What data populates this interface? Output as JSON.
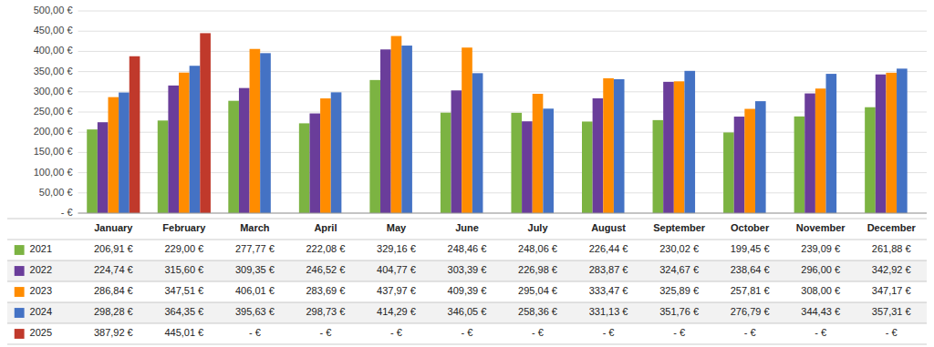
{
  "chart_data": {
    "type": "bar",
    "categories": [
      "January",
      "February",
      "March",
      "April",
      "May",
      "June",
      "July",
      "August",
      "September",
      "October",
      "November",
      "December"
    ],
    "series": [
      {
        "name": "2021",
        "color": "#7CB342",
        "values": [
          206.91,
          229.0,
          277.77,
          222.08,
          329.16,
          248.46,
          248.06,
          226.44,
          230.02,
          199.45,
          239.09,
          261.88
        ],
        "value_labels": [
          "206,91 €",
          "229,00 €",
          "277,77 €",
          "222,08 €",
          "329,16 €",
          "248,46 €",
          "248,06 €",
          "226,44 €",
          "230,02 €",
          "199,45 €",
          "239,09 €",
          "261,88 €"
        ]
      },
      {
        "name": "2022",
        "color": "#6A3D9A",
        "values": [
          224.74,
          315.6,
          309.35,
          246.52,
          404.77,
          303.39,
          226.98,
          283.87,
          324.67,
          238.64,
          296.0,
          342.92
        ],
        "value_labels": [
          "224,74 €",
          "315,60 €",
          "309,35 €",
          "246,52 €",
          "404,77 €",
          "303,39 €",
          "226,98 €",
          "283,87 €",
          "324,67 €",
          "238,64 €",
          "296,00 €",
          "342,92 €"
        ]
      },
      {
        "name": "2023",
        "color": "#FF8C00",
        "values": [
          286.84,
          347.51,
          406.01,
          283.69,
          437.97,
          409.39,
          295.04,
          333.47,
          325.89,
          257.81,
          308.0,
          347.17
        ],
        "value_labels": [
          "286,84 €",
          "347,51 €",
          "406,01 €",
          "283,69 €",
          "437,97 €",
          "409,39 €",
          "295,04 €",
          "333,47 €",
          "325,89 €",
          "257,81 €",
          "308,00 €",
          "347,17 €"
        ]
      },
      {
        "name": "2024",
        "color": "#4472C4",
        "values": [
          298.28,
          364.35,
          395.63,
          298.73,
          414.29,
          346.05,
          258.36,
          331.13,
          351.76,
          276.79,
          344.43,
          357.31
        ],
        "value_labels": [
          "298,28 €",
          "364,35 €",
          "395,63 €",
          "298,73 €",
          "414,29 €",
          "346,05 €",
          "258,36 €",
          "331,13 €",
          "351,76 €",
          "276,79 €",
          "344,43 €",
          "357,31 €"
        ]
      },
      {
        "name": "2025",
        "color": "#C0392B",
        "values": [
          387.92,
          445.01,
          null,
          null,
          null,
          null,
          null,
          null,
          null,
          null,
          null,
          null
        ],
        "value_labels": [
          "387,92 €",
          "445,01 €",
          "- €",
          "- €",
          "- €",
          "- €",
          "- €",
          "- €",
          "- €",
          "- €",
          "- €",
          "- €"
        ]
      }
    ],
    "ylim": [
      0,
      500
    ],
    "yticks": [
      {
        "value": 0,
        "label": "-  €"
      },
      {
        "value": 50,
        "label": "50,00 €"
      },
      {
        "value": 100,
        "label": "100,00 €"
      },
      {
        "value": 150,
        "label": "150,00 €"
      },
      {
        "value": 200,
        "label": "200,00 €"
      },
      {
        "value": 250,
        "label": "250,00 €"
      },
      {
        "value": 300,
        "label": "300,00 €"
      },
      {
        "value": 350,
        "label": "350,00 €"
      },
      {
        "value": 400,
        "label": "400,00 €"
      },
      {
        "value": 450,
        "label": "450,00 €"
      },
      {
        "value": 500,
        "label": "500,00 €"
      }
    ],
    "grid": true
  }
}
